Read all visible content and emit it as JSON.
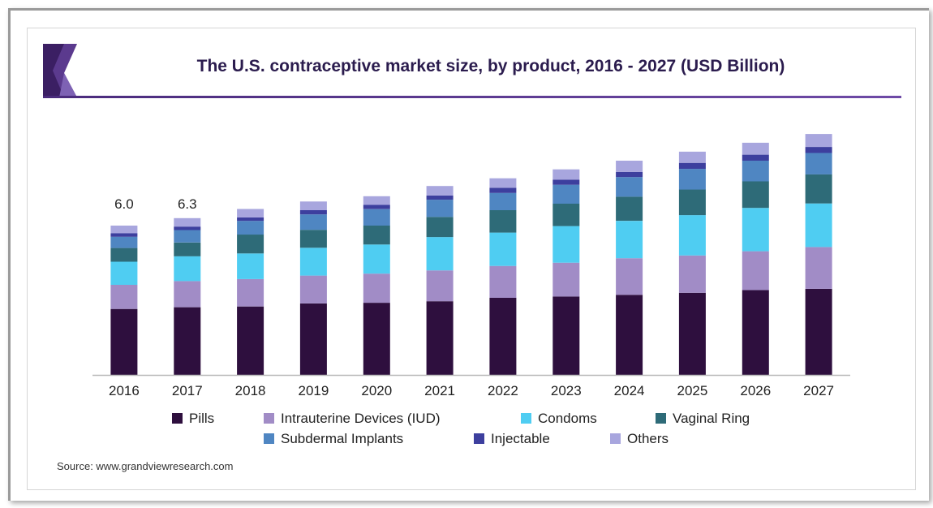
{
  "title": "The U.S. contraceptive market size, by product, 2016 - 2027 (USD Billion)",
  "source": "Source: www.grandviewresearch.com",
  "colors": {
    "Pills": "#2e0f3e",
    "Intrauterine Devices (IUD)": "#a18cc6",
    "Condoms": "#4fcdf2",
    "Vaginal Ring": "#2e6b78",
    "Subdermal Implants": "#4f86c2",
    "Injectable": "#3d3f9e",
    "Others": "#a8a6de"
  },
  "chart_data": {
    "type": "bar",
    "stacked": true,
    "categories": [
      "2016",
      "2017",
      "2018",
      "2019",
      "2020",
      "2021",
      "2022",
      "2023",
      "2024",
      "2025",
      "2026",
      "2027"
    ],
    "series": [
      {
        "name": "Pills",
        "values": [
          2.65,
          2.72,
          2.75,
          2.87,
          2.9,
          2.96,
          3.1,
          3.15,
          3.22,
          3.3,
          3.41,
          3.46
        ]
      },
      {
        "name": "Intrauterine Devices (IUD)",
        "values": [
          0.97,
          1.05,
          1.1,
          1.12,
          1.17,
          1.24,
          1.28,
          1.36,
          1.47,
          1.5,
          1.56,
          1.68
        ]
      },
      {
        "name": "Condoms",
        "values": [
          0.93,
          1.0,
          1.03,
          1.12,
          1.17,
          1.34,
          1.34,
          1.47,
          1.5,
          1.62,
          1.74,
          1.75
        ]
      },
      {
        "name": "Vaginal Ring",
        "values": [
          0.55,
          0.55,
          0.76,
          0.72,
          0.76,
          0.81,
          0.9,
          0.9,
          0.97,
          1.03,
          1.07,
          1.17
        ]
      },
      {
        "name": "Subdermal Implants",
        "values": [
          0.45,
          0.5,
          0.55,
          0.62,
          0.66,
          0.69,
          0.69,
          0.76,
          0.79,
          0.83,
          0.83,
          0.86
        ]
      },
      {
        "name": "Injectable",
        "values": [
          0.14,
          0.14,
          0.14,
          0.17,
          0.17,
          0.17,
          0.21,
          0.21,
          0.21,
          0.24,
          0.24,
          0.24
        ]
      },
      {
        "name": "Others",
        "values": [
          0.31,
          0.34,
          0.34,
          0.35,
          0.35,
          0.38,
          0.38,
          0.41,
          0.45,
          0.45,
          0.48,
          0.52
        ]
      }
    ],
    "annotations": [
      {
        "category": "2016",
        "label": "6.0"
      },
      {
        "category": "2017",
        "label": "6.3"
      }
    ],
    "ylim": [
      0,
      10.5
    ],
    "grid": false,
    "legend_position": "bottom"
  }
}
